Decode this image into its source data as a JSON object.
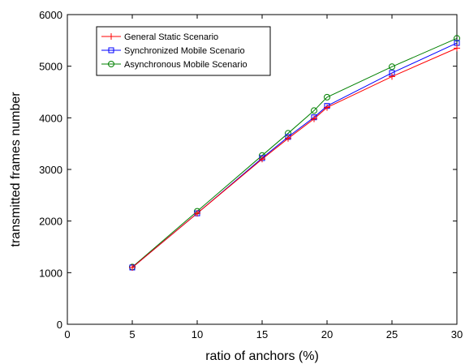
{
  "chart_data": {
    "type": "line",
    "xlabel": "ratio of anchors (%)",
    "ylabel": "transmitted frames number",
    "xlim": [
      0,
      30
    ],
    "ylim": [
      0,
      6000
    ],
    "xticks": [
      0,
      5,
      10,
      15,
      20,
      25,
      30
    ],
    "yticks": [
      0,
      1000,
      2000,
      3000,
      4000,
      5000,
      6000
    ],
    "grid": false,
    "legend_position": "top-left",
    "x": [
      5,
      10,
      15,
      17,
      19,
      20,
      25,
      30
    ],
    "series": [
      {
        "name": "General Static Scenario",
        "color": "#ff0000",
        "marker": "plus",
        "values": [
          1100,
          2150,
          3200,
          3600,
          3980,
          4200,
          4800,
          5350
        ]
      },
      {
        "name": "Synchronized Mobile Scenario",
        "color": "#0000ff",
        "marker": "square",
        "values": [
          1100,
          2150,
          3220,
          3630,
          4010,
          4230,
          4870,
          5450
        ]
      },
      {
        "name": "Asynchronous Mobile Scenario",
        "color": "#008000",
        "marker": "circle",
        "values": [
          1110,
          2190,
          3270,
          3700,
          4140,
          4400,
          4990,
          5540
        ]
      }
    ]
  }
}
